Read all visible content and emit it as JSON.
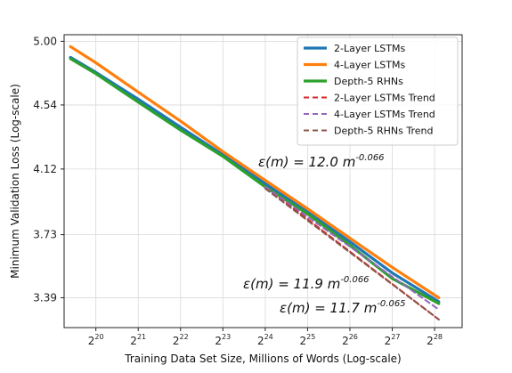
{
  "chart_data": {
    "type": "line",
    "title": "",
    "xlabel": "Training Data Set Size, Millions of Words (Log-scale)",
    "ylabel": "Minimum Validation Loss (Log-scale)",
    "x_scale": "log2",
    "y_scale": "log",
    "xlim_log2": [
      19.25,
      28.65
    ],
    "ylim": [
      3.24,
      5.05
    ],
    "x_ticks": [
      {
        "exp": 20,
        "base": "2",
        "sup": "20"
      },
      {
        "exp": 21,
        "base": "2",
        "sup": "21"
      },
      {
        "exp": 22,
        "base": "2",
        "sup": "22"
      },
      {
        "exp": 23,
        "base": "2",
        "sup": "23"
      },
      {
        "exp": 24,
        "base": "2",
        "sup": "24"
      },
      {
        "exp": 25,
        "base": "2",
        "sup": "25"
      },
      {
        "exp": 26,
        "base": "2",
        "sup": "26"
      },
      {
        "exp": 27,
        "base": "2",
        "sup": "27"
      },
      {
        "exp": 28,
        "base": "2",
        "sup": "28"
      }
    ],
    "y_ticks": [
      {
        "value": 5.0,
        "label": "5.00"
      },
      {
        "value": 4.54,
        "label": "4.54"
      },
      {
        "value": 4.12,
        "label": "4.12"
      },
      {
        "value": 3.73,
        "label": "3.73"
      },
      {
        "value": 3.39,
        "label": "3.39"
      }
    ],
    "grid": true,
    "legend_position": "top-right",
    "series": [
      {
        "name": "2-Layer LSTMs",
        "color": "#1f77b4",
        "style": "solid",
        "x_log2": [
          19.4,
          20.0,
          21.0,
          22.0,
          23.0,
          24.0,
          25.0,
          26.0,
          27.0,
          28.1
        ],
        "y": [
          4.88,
          4.77,
          4.58,
          4.39,
          4.21,
          4.03,
          3.86,
          3.69,
          3.52,
          3.37
        ]
      },
      {
        "name": "4-Layer LSTMs",
        "color": "#ff7f0e",
        "style": "solid",
        "x_log2": [
          19.4,
          20.0,
          21.0,
          22.0,
          23.0,
          24.0,
          25.0,
          26.0,
          27.0,
          28.1
        ],
        "y": [
          4.96,
          4.84,
          4.63,
          4.43,
          4.23,
          4.05,
          3.88,
          3.71,
          3.55,
          3.39
        ]
      },
      {
        "name": "Depth-5 RHNs",
        "color": "#2ca02c",
        "style": "solid",
        "x_log2": [
          19.4,
          20.0,
          21.0,
          22.0,
          23.0,
          24.0,
          25.0,
          26.0,
          27.0,
          28.1
        ],
        "y": [
          4.87,
          4.76,
          4.56,
          4.37,
          4.2,
          4.01,
          3.85,
          3.67,
          3.49,
          3.36
        ]
      },
      {
        "name": "2-Layer LSTMs Trend",
        "color": "#d62728",
        "style": "dashed",
        "x_log2": [
          24.0,
          28.1
        ],
        "y": [
          4.01,
          3.28
        ]
      },
      {
        "name": "4-Layer LSTMs Trend",
        "color": "#9467bd",
        "style": "dashed",
        "x_log2": [
          24.0,
          28.1
        ],
        "y": [
          4.01,
          3.33
        ]
      },
      {
        "name": "Depth-5 RHNs Trend",
        "color": "#8c564b",
        "style": "dashed",
        "x_log2": [
          24.0,
          28.1
        ],
        "y": [
          4.0,
          3.28
        ]
      }
    ],
    "annotations": [
      {
        "text": "ε(m) = 12.0 m",
        "sup": "-0.066"
      },
      {
        "text": "ε(m) = 11.9 m",
        "sup": "-0.066"
      },
      {
        "text": "ε(m) = 11.7 m",
        "sup": "-0.065"
      }
    ]
  }
}
